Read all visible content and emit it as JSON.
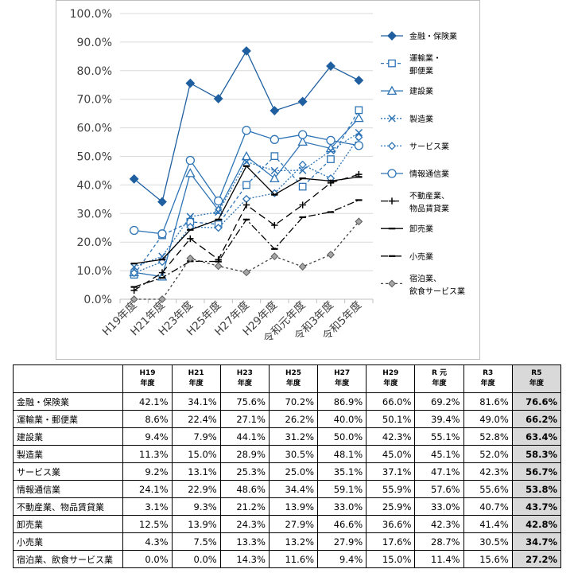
{
  "chart_data": {
    "type": "line",
    "categories": [
      "H19年度",
      "H21年度",
      "H23年度",
      "H25年度",
      "H27年度",
      "H29年度",
      "令和元年度",
      "令和3年度",
      "令和5年度"
    ],
    "ylim": [
      0,
      100
    ],
    "yticks": [
      "0.0%",
      "10.0%",
      "20.0%",
      "30.0%",
      "40.0%",
      "50.0%",
      "60.0%",
      "70.0%",
      "80.0%",
      "90.0%",
      "100.0%"
    ],
    "grid": true,
    "legend_position": "right",
    "series": [
      {
        "name": "金融・保険業",
        "legend": [
          "金融・保険業"
        ],
        "color": "#1f5fa0",
        "dash": "",
        "marker": "diamond-filled",
        "values": [
          42.1,
          34.1,
          75.6,
          70.2,
          86.9,
          66.0,
          69.2,
          81.6,
          76.6
        ]
      },
      {
        "name": "運輸業・郵便業",
        "legend": [
          "運輸業・",
          "郵便業"
        ],
        "color": "#2e74b5",
        "dash": "4,3",
        "marker": "square",
        "values": [
          8.6,
          22.4,
          27.1,
          26.2,
          40.0,
          50.1,
          39.4,
          49.0,
          66.2
        ]
      },
      {
        "name": "建設業",
        "legend": [
          "建設業"
        ],
        "color": "#2e74b5",
        "dash": "",
        "marker": "triangle",
        "values": [
          9.4,
          7.9,
          44.1,
          31.2,
          50.0,
          42.3,
          55.1,
          52.8,
          63.4
        ]
      },
      {
        "name": "製造業",
        "legend": [
          "製造業"
        ],
        "color": "#2e74b5",
        "dash": "2,2",
        "marker": "x",
        "values": [
          11.3,
          15.0,
          28.9,
          30.5,
          48.1,
          45.0,
          45.1,
          52.0,
          58.3
        ]
      },
      {
        "name": "サービス業",
        "legend": [
          "サービス業"
        ],
        "color": "#2e74b5",
        "dash": "2,2",
        "marker": "diamond",
        "values": [
          9.2,
          13.1,
          25.3,
          25.0,
          35.1,
          37.1,
          47.1,
          42.3,
          56.7
        ]
      },
      {
        "name": "情報通信業",
        "legend": [
          "情報通信業"
        ],
        "color": "#2e74b5",
        "dash": "",
        "marker": "circle",
        "values": [
          24.1,
          22.9,
          48.6,
          34.4,
          59.1,
          55.9,
          57.6,
          55.6,
          53.8
        ]
      },
      {
        "name": "不動産業、物品賃貸業",
        "legend": [
          "不動産業、",
          "物品賃貸業"
        ],
        "color": "#000000",
        "dash": "9,5",
        "marker": "plus",
        "values": [
          3.1,
          9.3,
          21.2,
          13.9,
          33.0,
          25.9,
          33.0,
          40.7,
          43.7
        ]
      },
      {
        "name": "卸売業",
        "legend": [
          "卸売業"
        ],
        "color": "#000000",
        "dash": "",
        "marker": "dash",
        "values": [
          12.5,
          13.9,
          24.3,
          27.9,
          46.6,
          36.6,
          42.3,
          41.4,
          42.8
        ]
      },
      {
        "name": "小売業",
        "legend": [
          "小売業"
        ],
        "color": "#000000",
        "dash": "9,3,2,3",
        "marker": "dash",
        "values": [
          4.3,
          7.5,
          13.3,
          13.2,
          27.9,
          17.6,
          28.7,
          30.5,
          34.7
        ]
      },
      {
        "name": "宿泊業、飲食サービス業",
        "legend": [
          "宿泊業、",
          "飲食サービス業"
        ],
        "color": "#404040",
        "dash": "3,3",
        "marker": "diamond-gray",
        "values": [
          0.0,
          0.0,
          14.3,
          11.6,
          9.4,
          15.0,
          11.4,
          15.6,
          27.2
        ]
      }
    ]
  },
  "table": {
    "headers": [
      [
        "H19",
        "年度"
      ],
      [
        "H21",
        "年度"
      ],
      [
        "H23",
        "年度"
      ],
      [
        "H25",
        "年度"
      ],
      [
        "H27",
        "年度"
      ],
      [
        "H29",
        "年度"
      ],
      [
        "R 元",
        "年度"
      ],
      [
        "R3",
        "年度"
      ],
      [
        "R5",
        "年度"
      ]
    ],
    "rows": [
      {
        "label": "金融・保険業",
        "cells": [
          "42.1%",
          "34.1%",
          "75.6%",
          "70.2%",
          "86.9%",
          "66.0%",
          "69.2%",
          "81.6%",
          "76.6%"
        ]
      },
      {
        "label": "運輸業・郵便業",
        "cells": [
          "8.6%",
          "22.4%",
          "27.1%",
          "26.2%",
          "40.0%",
          "50.1%",
          "39.4%",
          "49.0%",
          "66.2%"
        ]
      },
      {
        "label": "建設業",
        "cells": [
          "9.4%",
          "7.9%",
          "44.1%",
          "31.2%",
          "50.0%",
          "42.3%",
          "55.1%",
          "52.8%",
          "63.4%"
        ]
      },
      {
        "label": "製造業",
        "cells": [
          "11.3%",
          "15.0%",
          "28.9%",
          "30.5%",
          "48.1%",
          "45.0%",
          "45.1%",
          "52.0%",
          "58.3%"
        ]
      },
      {
        "label": "サービス業",
        "cells": [
          "9.2%",
          "13.1%",
          "25.3%",
          "25.0%",
          "35.1%",
          "37.1%",
          "47.1%",
          "42.3%",
          "56.7%"
        ]
      },
      {
        "label": "情報通信業",
        "cells": [
          "24.1%",
          "22.9%",
          "48.6%",
          "34.4%",
          "59.1%",
          "55.9%",
          "57.6%",
          "55.6%",
          "53.8%"
        ]
      },
      {
        "label": "不動産業、物品賃貸業",
        "cells": [
          "3.1%",
          "9.3%",
          "21.2%",
          "13.9%",
          "33.0%",
          "25.9%",
          "33.0%",
          "40.7%",
          "43.7%"
        ]
      },
      {
        "label": "卸売業",
        "cells": [
          "12.5%",
          "13.9%",
          "24.3%",
          "27.9%",
          "46.6%",
          "36.6%",
          "42.3%",
          "41.4%",
          "42.8%"
        ]
      },
      {
        "label": "小売業",
        "cells": [
          "4.3%",
          "7.5%",
          "13.3%",
          "13.2%",
          "27.9%",
          "17.6%",
          "28.7%",
          "30.5%",
          "34.7%"
        ]
      },
      {
        "label": "宿泊業、飲食サービス業",
        "cells": [
          "0.0%",
          "0.0%",
          "14.3%",
          "11.6%",
          "9.4%",
          "15.0%",
          "11.4%",
          "15.6%",
          "27.2%"
        ]
      }
    ]
  }
}
